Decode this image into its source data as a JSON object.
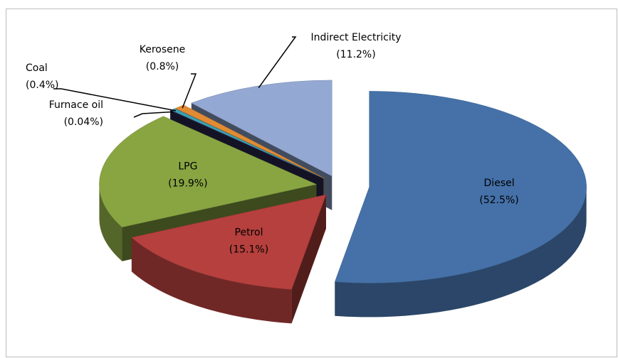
{
  "chart_data": {
    "type": "pie3d",
    "categories": [
      "Diesel",
      "Petrol",
      "LPG",
      "Furnace oil",
      "Coal",
      "Kerosene",
      "Indirect Electricity"
    ],
    "values": [
      52.5,
      15.1,
      19.9,
      0.04,
      0.4,
      0.8,
      11.2
    ],
    "value_labels": [
      "(52.5%)",
      "(15.1%)",
      "(19.9%)",
      "(0.04%)",
      "(0.4%)",
      "(0.8%)",
      "(11.2%)"
    ],
    "colors": [
      "#4571a8",
      "#b5403d",
      "#88a542",
      "#2d2b52",
      "#3d9eb2",
      "#e38b32",
      "#93a8d2"
    ]
  }
}
